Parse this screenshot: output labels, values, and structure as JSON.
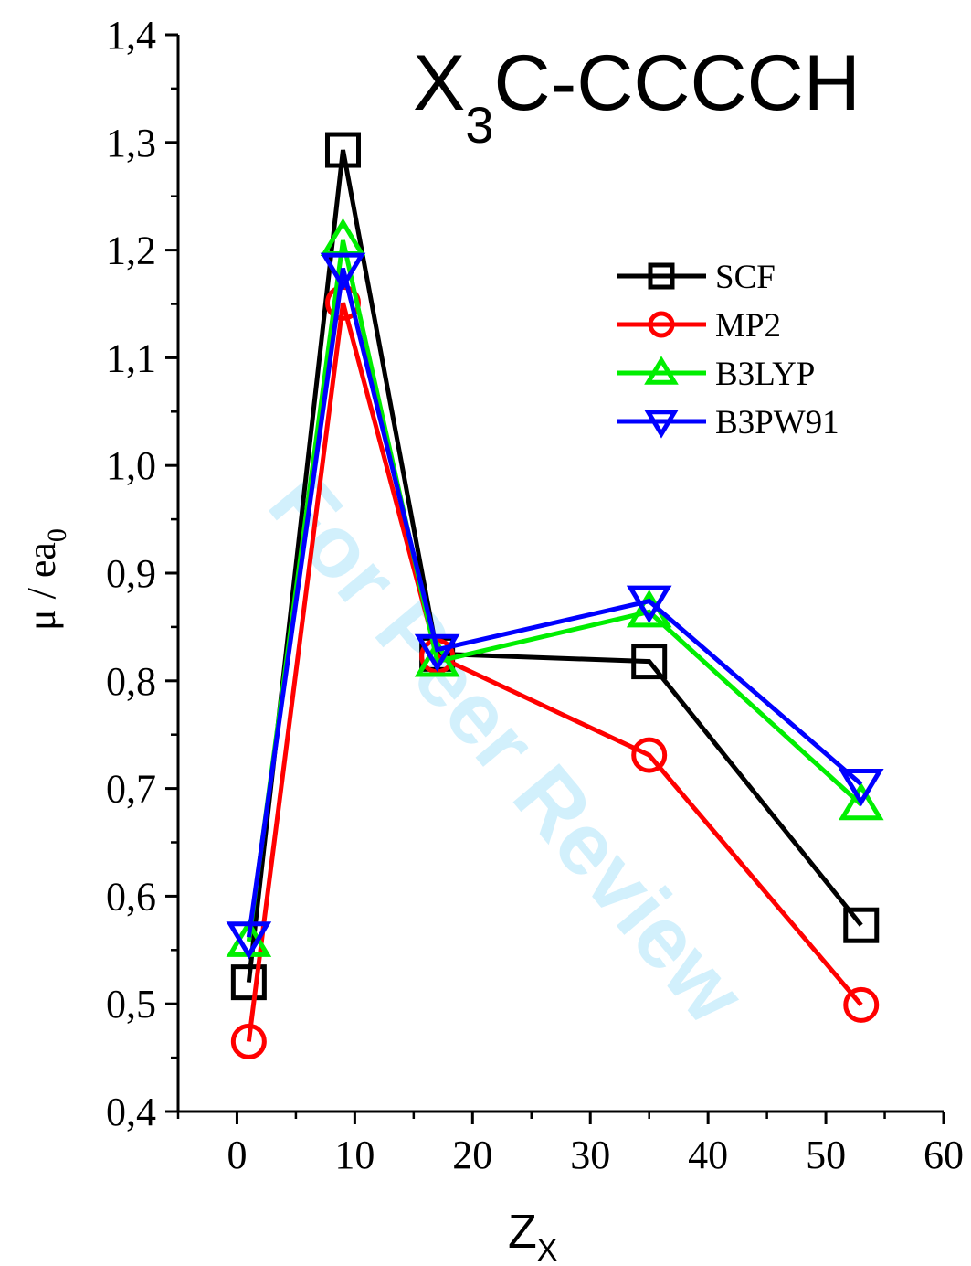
{
  "chart_data": {
    "type": "line",
    "title_parts": {
      "main": "X",
      "sub": "3",
      "rest": "C-CCCCH"
    },
    "xlabel_parts": {
      "main": "Z",
      "sub": "X"
    },
    "ylabel_parts": {
      "main": "μ / ea",
      "sub": "0"
    },
    "xlim": [
      -5,
      60
    ],
    "ylim": [
      0.4,
      1.4
    ],
    "xticks": [
      0,
      10,
      20,
      30,
      40,
      50,
      60
    ],
    "xtick_labels": [
      "0",
      "10",
      "20",
      "30",
      "40",
      "50",
      "60"
    ],
    "yticks": [
      0.4,
      0.5,
      0.6,
      0.7,
      0.8,
      0.9,
      1.0,
      1.1,
      1.2,
      1.3,
      1.4
    ],
    "ytick_labels": [
      "0,4",
      "0,5",
      "0,6",
      "0,7",
      "0,8",
      "0,9",
      "1,0",
      "1,1",
      "1,2",
      "1,3",
      "1,4"
    ],
    "grid": false,
    "legend_position": "top-right",
    "x": [
      1,
      9,
      17,
      35,
      53
    ],
    "series": [
      {
        "name": "SCF",
        "color": "#000000",
        "marker": "square",
        "values": [
          0.52,
          1.293,
          0.825,
          0.818,
          0.573
        ]
      },
      {
        "name": "MP2",
        "color": "#ff0000",
        "marker": "circle",
        "values": [
          0.465,
          1.151,
          0.823,
          0.731,
          0.499
        ]
      },
      {
        "name": "B3LYP",
        "color": "#00ee00",
        "marker": "triangle-up",
        "values": [
          0.558,
          1.209,
          0.818,
          0.864,
          0.685
        ]
      },
      {
        "name": "B3PW91",
        "color": "#0000ff",
        "marker": "triangle-down",
        "values": [
          0.562,
          1.183,
          0.829,
          0.874,
          0.704
        ]
      }
    ]
  },
  "watermark": "For Peer Review"
}
